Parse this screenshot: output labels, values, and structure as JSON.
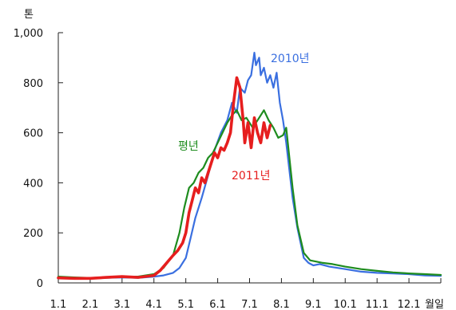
{
  "chart_data": {
    "type": "line",
    "ylabel": "톤",
    "xunit": "월일",
    "ylim": [
      0,
      1000
    ],
    "yticks": [
      0,
      200,
      400,
      600,
      800,
      1000
    ],
    "ytick_labels": [
      "0",
      "200",
      "400",
      "600",
      "800",
      "1,000"
    ],
    "xlim": [
      1,
      13
    ],
    "xticks": [
      1,
      2,
      3,
      4,
      5,
      6,
      7,
      8,
      9,
      10,
      11,
      12
    ],
    "xtick_labels": [
      "1.1",
      "2.1",
      "3.1",
      "4.1",
      "5.1",
      "6.1",
      "7.1",
      "8.1",
      "9.1",
      "10.1",
      "11.1",
      "12.1"
    ],
    "grid": false,
    "legend": "inline labels",
    "series": [
      {
        "name": "2010년",
        "color": "#3a6fe0",
        "x": [
          1.0,
          1.5,
          2.0,
          2.5,
          3.0,
          3.5,
          4.0,
          4.3,
          4.6,
          4.8,
          5.0,
          5.15,
          5.3,
          5.5,
          5.7,
          5.9,
          6.1,
          6.3,
          6.45,
          6.6,
          6.7,
          6.85,
          6.95,
          7.05,
          7.15,
          7.2,
          7.3,
          7.35,
          7.45,
          7.55,
          7.65,
          7.75,
          7.85,
          7.95,
          8.05,
          8.15,
          8.25,
          8.35,
          8.5,
          8.7,
          8.85,
          9.0,
          9.2,
          9.5,
          10.0,
          10.5,
          11.0,
          11.5,
          12.0,
          12.5,
          13.0
        ],
        "y": [
          20,
          20,
          18,
          20,
          22,
          20,
          25,
          30,
          40,
          60,
          100,
          180,
          260,
          340,
          430,
          530,
          600,
          650,
          720,
          680,
          780,
          760,
          810,
          830,
          920,
          870,
          900,
          830,
          860,
          800,
          830,
          780,
          840,
          720,
          650,
          560,
          450,
          340,
          220,
          100,
          80,
          70,
          75,
          65,
          55,
          45,
          40,
          38,
          35,
          30,
          28
        ]
      },
      {
        "name": "평년",
        "color": "#1e8c1e",
        "x": [
          1.0,
          1.5,
          2.0,
          2.5,
          3.0,
          3.5,
          4.0,
          4.3,
          4.6,
          4.8,
          4.95,
          5.1,
          5.25,
          5.4,
          5.55,
          5.7,
          5.85,
          6.0,
          6.15,
          6.3,
          6.45,
          6.6,
          6.75,
          6.9,
          7.1,
          7.3,
          7.45,
          7.6,
          7.75,
          7.9,
          8.05,
          8.15,
          8.25,
          8.35,
          8.5,
          8.7,
          8.9,
          9.1,
          9.3,
          9.6,
          10.0,
          10.5,
          11.0,
          11.5,
          12.0,
          12.5,
          13.0
        ],
        "y": [
          25,
          22,
          20,
          22,
          25,
          25,
          35,
          60,
          110,
          200,
          300,
          380,
          400,
          440,
          460,
          500,
          520,
          560,
          600,
          640,
          670,
          690,
          650,
          660,
          620,
          660,
          690,
          650,
          620,
          580,
          590,
          620,
          500,
          380,
          230,
          120,
          90,
          85,
          80,
          75,
          65,
          55,
          48,
          42,
          38,
          35,
          32
        ]
      },
      {
        "name": "2011년",
        "color": "#e61e1e",
        "x": [
          1.0,
          1.5,
          2.0,
          2.5,
          3.0,
          3.5,
          4.0,
          4.2,
          4.4,
          4.6,
          4.75,
          4.9,
          5.0,
          5.1,
          5.2,
          5.3,
          5.4,
          5.5,
          5.6,
          5.7,
          5.8,
          5.9,
          6.0,
          6.1,
          6.2,
          6.3,
          6.4,
          6.5,
          6.6,
          6.7,
          6.8,
          6.85,
          6.95,
          7.05,
          7.15,
          7.25,
          7.35,
          7.45,
          7.55,
          7.65
        ],
        "y": [
          20,
          18,
          18,
          22,
          25,
          22,
          30,
          50,
          80,
          110,
          130,
          160,
          200,
          280,
          330,
          380,
          360,
          420,
          400,
          440,
          480,
          520,
          500,
          540,
          530,
          560,
          600,
          720,
          820,
          780,
          650,
          560,
          640,
          540,
          660,
          600,
          560,
          640,
          580,
          630
        ]
      }
    ],
    "labels": {
      "s2010": "2010년",
      "avg": "평년",
      "s2011": "2011년"
    }
  }
}
